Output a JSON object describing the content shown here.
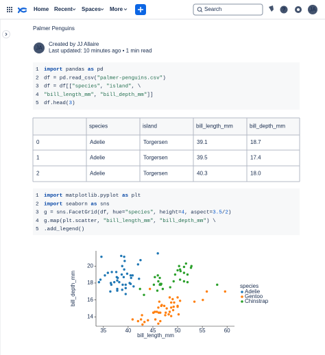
{
  "nav": {
    "items": [
      "Home",
      "Recent",
      "Spaces",
      "More"
    ],
    "search": "Search",
    "avatar": "JA"
  },
  "page": {
    "title": "Palmer Penguins",
    "avatar": "JA",
    "byline": "Created by JJ Allaire",
    "meta": "Last updated: 10 minutes ago • 1 min read"
  },
  "code_blocks": [
    {
      "line_numbers": [
        "1",
        "2",
        "3",
        "4",
        "5"
      ],
      "lines": [
        "import pandas as pd",
        "df = pd.read_csv(\"palmer-penguins.csv\")",
        "df = df[[\"species\", \"island\", \\",
        "        \"bill_length_mm\", \"bill_depth_mm\"]]",
        "df.head(3)"
      ]
    },
    {
      "line_numbers": [
        "1",
        "2",
        "3",
        "4",
        "5"
      ],
      "lines": [
        "import matplotlib.pyplot as plt",
        "import seaborn as sns",
        "g = sns.FacetGrid(df, hue=\"species\", height=4, aspect=3.5/2)",
        "g.map(plt.scatter, \"bill_length_mm\", \"bill_depth_mm\") \\",
        "  .add_legend()"
      ]
    }
  ],
  "table": {
    "columns": [
      "species",
      "island",
      "bill_length_mm",
      "bill_depth_mm"
    ],
    "rows": [
      [
        "0",
        "Adelie",
        "Torgersen",
        "39.1",
        "18.7"
      ],
      [
        "1",
        "Adelie",
        "Torgersen",
        "39.5",
        "17.4"
      ],
      [
        "2",
        "Adelie",
        "Torgersen",
        "40.3",
        "18.0"
      ]
    ]
  },
  "plot": {
    "type": "scatter",
    "xlabel": "bill_length_mm",
    "ylabel": "bill_depth_mm",
    "legend_title": "species",
    "xlim": [
      33.5,
      61.5
    ],
    "ylim": [
      12.9,
      21.8
    ],
    "xticks": [
      35,
      40,
      45,
      50,
      55,
      60
    ],
    "yticks": [
      14,
      16,
      18,
      20
    ],
    "series": [
      {
        "name": "Adelie",
        "color": "#1f77b4",
        "x": [
          39.1,
          39.5,
          40.3,
          36.7,
          39.3,
          38.9,
          39.2,
          34.1,
          42.0,
          37.8,
          37.8,
          41.1,
          38.6,
          34.6,
          36.6,
          38.7,
          42.5,
          34.4,
          46.0,
          37.8,
          37.7,
          35.9,
          38.2,
          38.8,
          35.3,
          40.6,
          40.5,
          37.9,
          40.5,
          39.5,
          37.2,
          39.5,
          40.9,
          36.4,
          39.2,
          38.8,
          42.2,
          37.6,
          39.8,
          36.5
        ],
        "y": [
          18.7,
          17.4,
          18.0,
          19.3,
          20.6,
          17.8,
          19.6,
          18.1,
          20.2,
          17.1,
          17.3,
          17.6,
          21.2,
          21.1,
          17.8,
          19.0,
          20.7,
          18.4,
          21.5,
          18.3,
          18.7,
          19.2,
          18.1,
          17.2,
          18.9,
          18.6,
          17.9,
          18.6,
          18.9,
          16.7,
          18.1,
          17.8,
          18.9,
          17.0,
          21.1,
          20.0,
          18.5,
          19.3,
          19.1,
          18.0
        ]
      },
      {
        "name": "Gentoo",
        "color": "#ff7f0e",
        "x": [
          46.1,
          50.0,
          48.7,
          50.0,
          47.6,
          46.5,
          45.4,
          46.7,
          43.3,
          46.8,
          40.9,
          49.0,
          45.5,
          48.4,
          45.8,
          49.3,
          42.0,
          49.2,
          46.2,
          48.7,
          50.2,
          45.1,
          46.5,
          46.3,
          42.9,
          46.1,
          47.8,
          48.2,
          50.0,
          47.3,
          42.8,
          45.1,
          59.6,
          49.1,
          48.4,
          42.6,
          44.4,
          44.0,
          48.7,
          55.9,
          50.5,
          55.1,
          47.5,
          53.4
        ],
        "y": [
          13.2,
          16.3,
          14.1,
          15.2,
          14.5,
          13.5,
          14.6,
          15.3,
          13.4,
          15.4,
          13.7,
          16.1,
          13.7,
          14.6,
          14.6,
          15.7,
          13.5,
          15.2,
          14.5,
          15.1,
          14.3,
          14.5,
          14.5,
          15.8,
          13.1,
          15.1,
          15.0,
          14.3,
          15.3,
          15.3,
          14.2,
          14.5,
          17.0,
          14.8,
          16.3,
          13.7,
          17.3,
          13.6,
          15.7,
          17.0,
          15.9,
          16.0,
          14.2,
          15.8
        ]
      },
      {
        "name": "Chinstrap",
        "color": "#2ca02c",
        "x": [
          46.5,
          50.0,
          51.3,
          45.4,
          52.7,
          45.2,
          46.1,
          51.3,
          46.0,
          51.3,
          46.6,
          51.7,
          47.0,
          52.0,
          45.9,
          50.5,
          50.3,
          58.0,
          46.4,
          49.2,
          42.4,
          48.5,
          43.2,
          50.6,
          46.7,
          52.0,
          50.5,
          49.5,
          46.4,
          52.8
        ],
        "y": [
          17.9,
          19.5,
          19.2,
          18.7,
          19.8,
          17.8,
          18.2,
          18.2,
          18.9,
          19.9,
          17.8,
          20.3,
          17.3,
          18.1,
          17.1,
          19.6,
          20.0,
          17.8,
          18.6,
          18.2,
          17.3,
          17.5,
          16.6,
          19.4,
          17.9,
          19.0,
          18.4,
          19.0,
          17.8,
          20.0
        ]
      }
    ]
  }
}
